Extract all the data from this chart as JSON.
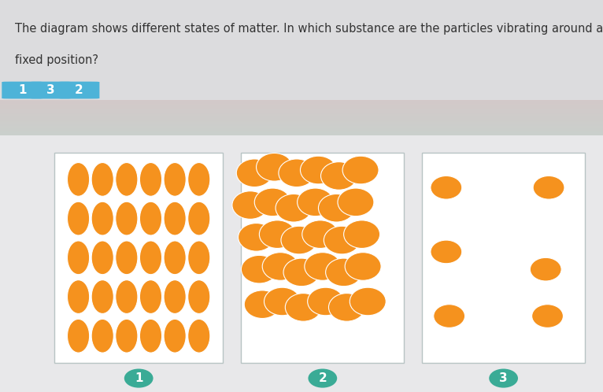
{
  "question_text_line1": "The diagram shows different states of matter. In which substance are the particles vibrating around a",
  "question_text_line2": "fixed position?",
  "answer_labels": [
    "1",
    "3",
    "2"
  ],
  "answer_bg_color": "#4db3d8",
  "answer_text_color": "#ffffff",
  "top_bg_color": "#f2f2f2",
  "gradient_bg_top": "#a8c8b8",
  "gradient_bg_right": "#c8a8b8",
  "lower_bg_color": "#e8e8ea",
  "particle_color": "#f5921e",
  "particle_edge_color": "#ffffff",
  "box_edge_color": "#b8c4c4",
  "number_circle_color": "#3aab96",
  "number_text_color": "#ffffff",
  "figsize": [
    7.66,
    4.98
  ],
  "dpi": 100
}
